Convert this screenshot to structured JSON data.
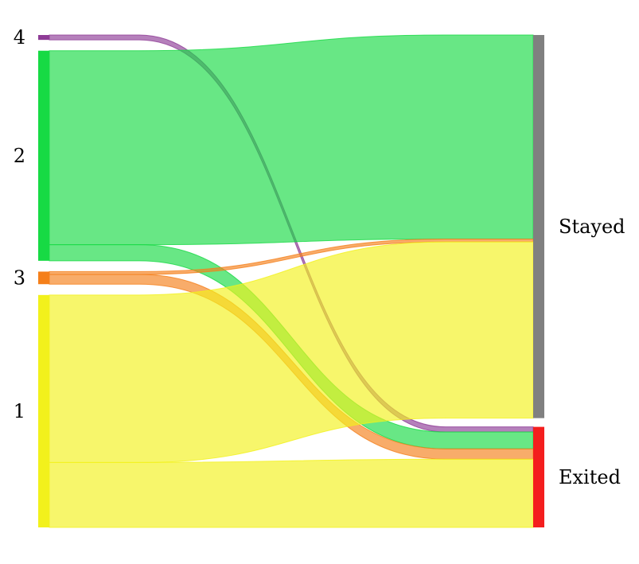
{
  "chart_data": {
    "type": "sankey",
    "title": "",
    "sources": [
      {
        "label": "4",
        "color": "#8e3c96"
      },
      {
        "label": "2",
        "color": "#17da44"
      },
      {
        "label": "3",
        "color": "#f57f1a"
      },
      {
        "label": "1",
        "color": "#f2f11c"
      }
    ],
    "targets": [
      {
        "label": "Stayed",
        "color": "#808080"
      },
      {
        "label": "Exited",
        "color": "#f41e1e"
      }
    ],
    "links": [
      {
        "source": "4",
        "target": "Exited",
        "value": 0.7,
        "color": "#8e3c96"
      },
      {
        "source": "2",
        "target": "Stayed",
        "value": 27.8,
        "color": "#17da44"
      },
      {
        "source": "2",
        "target": "Exited",
        "value": 2.3,
        "color": "#17da44"
      },
      {
        "source": "3",
        "target": "Stayed",
        "value": 0.4,
        "color": "#f57f1a"
      },
      {
        "source": "3",
        "target": "Exited",
        "value": 1.4,
        "color": "#f57f1a"
      },
      {
        "source": "1",
        "target": "Stayed",
        "value": 24.0,
        "color": "#f2f11c"
      },
      {
        "source": "1",
        "target": "Exited",
        "value": 9.3,
        "color": "#f2f11c"
      }
    ]
  }
}
